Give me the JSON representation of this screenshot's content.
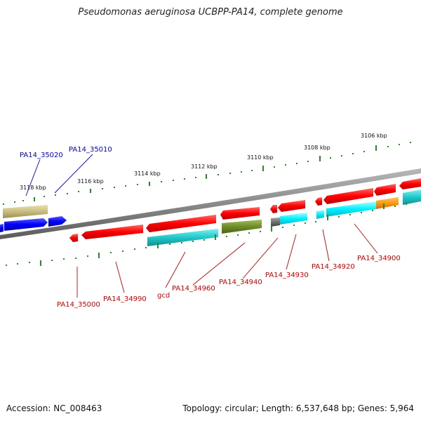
{
  "title": "Pseudomonas aeruginosa UCBPP-PA14, complete genome",
  "footer": {
    "accession": "Accession: NC_008463",
    "summary": "Topology: circular; Length: 6,537,648 bp; Genes: 5,964"
  },
  "colors": {
    "backbone": "#8a8a8a",
    "tick": "#2a8a2a",
    "forward_gene": "#ff0000",
    "reverse_gene": "#1fc8c8",
    "blue_gene": "#0000ff",
    "tan_gene": "#c8bd80",
    "olive_gene": "#6e8c28",
    "orange_gene": "#ff9a10",
    "gray_gene": "#707070",
    "label_red": "#cc0000",
    "label_blue": "#0000cc"
  },
  "scale_labels": [
    "3118 kbp",
    "3116 kbp",
    "3114 kbp",
    "3112 kbp",
    "3110 kbp",
    "3108 kbp",
    "3106 kbp"
  ],
  "gene_labels": [
    {
      "text": "PA14_35020",
      "color": "blue"
    },
    {
      "text": "PA14_35010",
      "color": "blue"
    },
    {
      "text": "PA14_35000",
      "color": "red"
    },
    {
      "text": "PA14_34990",
      "color": "red"
    },
    {
      "text": "gcd",
      "color": "red"
    },
    {
      "text": "PA14_34960",
      "color": "red"
    },
    {
      "text": "PA14_34940",
      "color": "red"
    },
    {
      "text": "PA14_34930",
      "color": "red"
    },
    {
      "text": "PA14_34920",
      "color": "red"
    },
    {
      "text": "PA14_34900",
      "color": "red"
    }
  ]
}
